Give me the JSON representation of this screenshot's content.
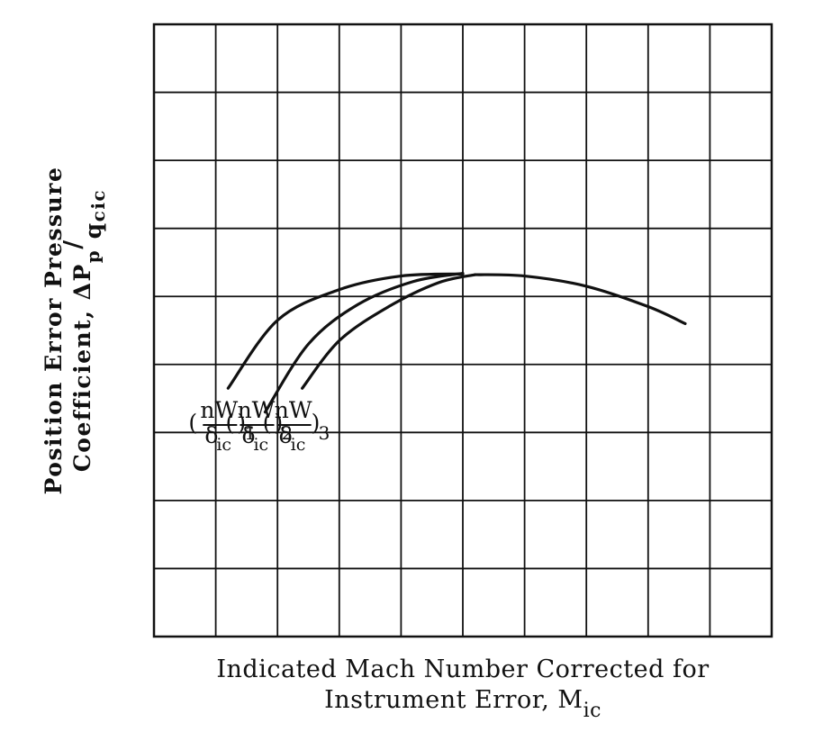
{
  "chart_data": {
    "type": "line",
    "title": "",
    "grid": true,
    "xlabel": {
      "line1": "Indicated Mach Number Corrected for",
      "line2_main": "Instrument Error, M",
      "line2_sub": "ic"
    },
    "ylabel": {
      "line1": "Position Error Pressure",
      "line2_main": "Coefficient, ΔP",
      "line2_p": "p",
      "line2_slash": "/",
      "line2_q": "q",
      "line2_sub": "cic"
    },
    "xlim": [
      0,
      10
    ],
    "ylim": [
      0,
      9
    ],
    "series": [
      {
        "name_parts": {
          "open": "(",
          "num": "nW",
          "den": "δ",
          "den_sub": "ic",
          "close": ")",
          "index": "1"
        },
        "x": [
          1.2,
          2.0,
          3.0,
          4.0,
          5.0
        ],
        "y": [
          3.65,
          4.65,
          5.1,
          5.3,
          5.33
        ]
      },
      {
        "name_parts": {
          "open": "(",
          "num": "nW",
          "den": "δ",
          "den_sub": "ic",
          "close": ")",
          "index": "2"
        },
        "x": [
          1.8,
          2.5,
          3.3,
          4.2,
          5.0
        ],
        "y": [
          3.3,
          4.3,
          4.88,
          5.22,
          5.34
        ]
      },
      {
        "name_parts": {
          "open": "(",
          "num": "nW",
          "den": "δ",
          "den_sub": "ic",
          "close": ")",
          "index": "3"
        },
        "x": [
          2.4,
          3.0,
          3.8,
          4.6,
          5.2
        ],
        "y": [
          3.65,
          4.35,
          4.85,
          5.2,
          5.32
        ]
      },
      {
        "name": "",
        "x": [
          5.2,
          6.0,
          7.0,
          8.0,
          8.6
        ],
        "y": [
          5.32,
          5.3,
          5.15,
          4.85,
          4.6
        ]
      }
    ]
  }
}
